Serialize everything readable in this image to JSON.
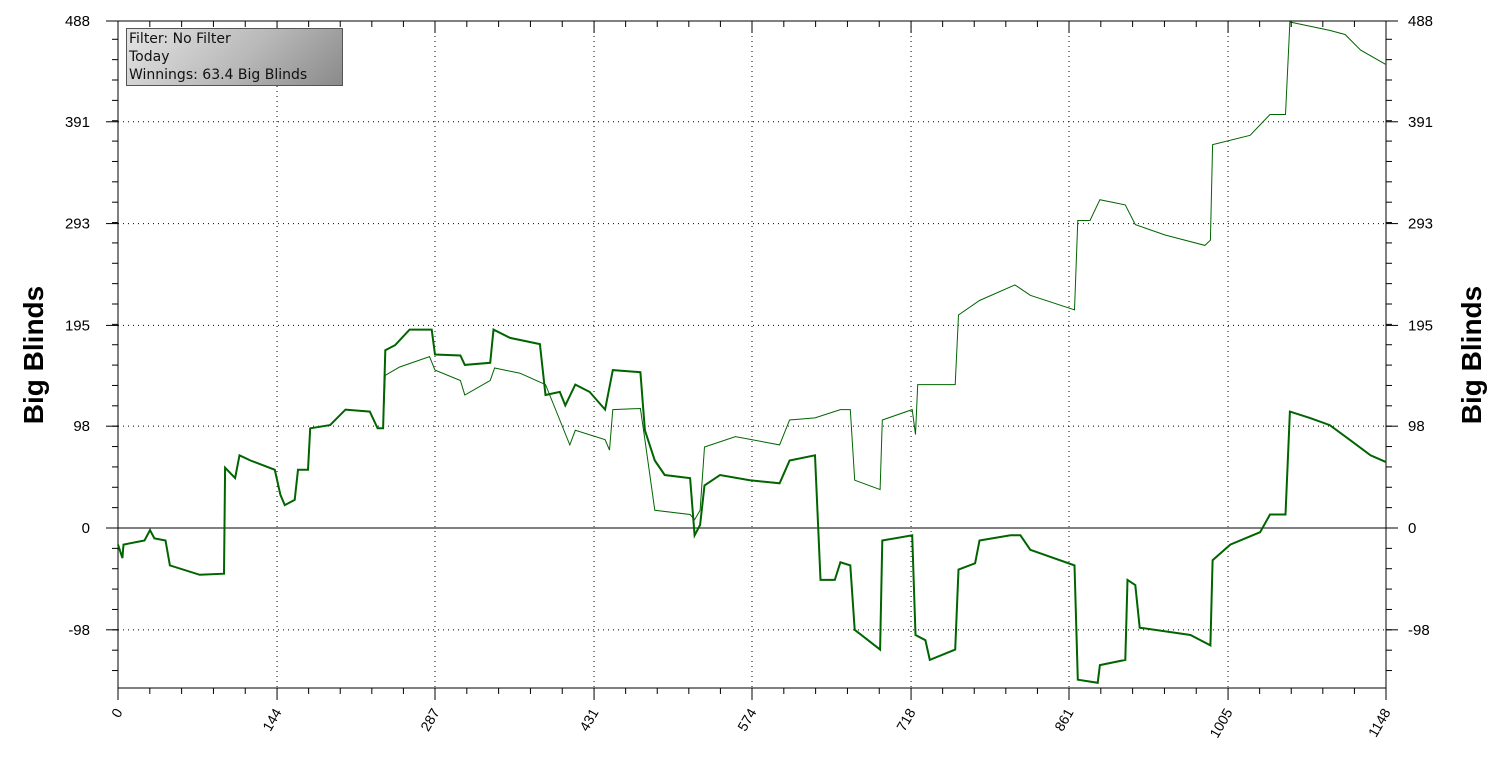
{
  "chart_data": {
    "type": "line",
    "title": "",
    "ylabel": "Big Blinds",
    "ylabel_right": "Big Blinds",
    "xlabel": "",
    "xlim": [
      0,
      1148
    ],
    "ylim": [
      -154,
      488
    ],
    "x_ticks": [
      0,
      144,
      287,
      431,
      574,
      718,
      861,
      1005,
      1148
    ],
    "y_ticks": [
      -98,
      0,
      98,
      195,
      293,
      391,
      488
    ],
    "grid": true,
    "line_color": "#006400",
    "series": [
      {
        "style": "thick",
        "points": [
          [
            0,
            -16
          ],
          [
            4,
            -29
          ],
          [
            5,
            -16
          ],
          [
            24,
            -12
          ],
          [
            29,
            -2
          ],
          [
            33,
            -10
          ],
          [
            43,
            -12
          ],
          [
            47,
            -36
          ],
          [
            74,
            -45
          ],
          [
            96,
            -44
          ],
          [
            97,
            58
          ],
          [
            106,
            48
          ],
          [
            110,
            70
          ],
          [
            120,
            65
          ],
          [
            142,
            56
          ],
          [
            147,
            32
          ],
          [
            151,
            22
          ],
          [
            160,
            27
          ],
          [
            163,
            56
          ],
          [
            172,
            56
          ],
          [
            174,
            96
          ],
          [
            192,
            99
          ],
          [
            206,
            114
          ],
          [
            228,
            112
          ],
          [
            235,
            96
          ],
          [
            240,
            96
          ],
          [
            242,
            171
          ],
          [
            251,
            176
          ],
          [
            264,
            191
          ],
          [
            284,
            191
          ],
          [
            287,
            167
          ],
          [
            310,
            166
          ],
          [
            314,
            157
          ],
          [
            337,
            159
          ],
          [
            340,
            191
          ],
          [
            355,
            183
          ],
          [
            382,
            177
          ],
          [
            387,
            128
          ],
          [
            400,
            131
          ],
          [
            405,
            118
          ],
          [
            414,
            138
          ],
          [
            427,
            131
          ],
          [
            441,
            114
          ],
          [
            448,
            152
          ],
          [
            473,
            150
          ],
          [
            477,
            94
          ],
          [
            486,
            65
          ],
          [
            495,
            51
          ],
          [
            518,
            48
          ],
          [
            522,
            -7
          ],
          [
            527,
            3
          ],
          [
            531,
            41
          ],
          [
            545,
            51
          ],
          [
            572,
            46
          ],
          [
            599,
            43
          ],
          [
            608,
            65
          ],
          [
            631,
            70
          ],
          [
            636,
            -50
          ],
          [
            649,
            -50
          ],
          [
            654,
            -33
          ],
          [
            663,
            -36
          ],
          [
            667,
            -98
          ],
          [
            690,
            -117
          ],
          [
            692,
            -12
          ],
          [
            719,
            -7
          ],
          [
            722,
            -103
          ],
          [
            731,
            -108
          ],
          [
            735,
            -127
          ],
          [
            758,
            -117
          ],
          [
            761,
            -40
          ],
          [
            776,
            -34
          ],
          [
            780,
            -12
          ],
          [
            808,
            -7
          ],
          [
            817,
            -7
          ],
          [
            826,
            -21
          ],
          [
            866,
            -36
          ],
          [
            869,
            -146
          ],
          [
            887,
            -149
          ],
          [
            889,
            -132
          ],
          [
            912,
            -127
          ],
          [
            914,
            -50
          ],
          [
            921,
            -55
          ],
          [
            925,
            -96
          ],
          [
            971,
            -103
          ],
          [
            989,
            -113
          ],
          [
            991,
            -31
          ],
          [
            1007,
            -16
          ],
          [
            1034,
            -4
          ],
          [
            1043,
            13
          ],
          [
            1057,
            13
          ],
          [
            1061,
            112
          ],
          [
            1079,
            106
          ],
          [
            1097,
            99
          ],
          [
            1115,
            85
          ],
          [
            1134,
            70
          ],
          [
            1148,
            63.4
          ]
        ]
      },
      {
        "style": "thin",
        "points": [
          [
            0,
            -16
          ],
          [
            4,
            -29
          ],
          [
            5,
            -16
          ],
          [
            24,
            -12
          ],
          [
            29,
            -2
          ],
          [
            33,
            -10
          ],
          [
            43,
            -12
          ],
          [
            47,
            -36
          ],
          [
            74,
            -45
          ],
          [
            96,
            -44
          ],
          [
            97,
            58
          ],
          [
            106,
            48
          ],
          [
            110,
            70
          ],
          [
            120,
            65
          ],
          [
            142,
            56
          ],
          [
            147,
            32
          ],
          [
            151,
            22
          ],
          [
            160,
            27
          ],
          [
            163,
            56
          ],
          [
            172,
            56
          ],
          [
            174,
            96
          ],
          [
            192,
            99
          ],
          [
            206,
            114
          ],
          [
            228,
            112
          ],
          [
            235,
            96
          ],
          [
            240,
            96
          ],
          [
            242,
            147
          ],
          [
            255,
            155
          ],
          [
            282,
            165
          ],
          [
            287,
            152
          ],
          [
            310,
            142
          ],
          [
            314,
            128
          ],
          [
            337,
            142
          ],
          [
            341,
            154
          ],
          [
            364,
            149
          ],
          [
            387,
            138
          ],
          [
            400,
            104
          ],
          [
            409,
            80
          ],
          [
            414,
            94
          ],
          [
            441,
            85
          ],
          [
            445,
            75
          ],
          [
            448,
            114
          ],
          [
            473,
            115
          ],
          [
            477,
            85
          ],
          [
            486,
            17
          ],
          [
            518,
            13
          ],
          [
            522,
            8
          ],
          [
            527,
            17
          ],
          [
            531,
            78
          ],
          [
            559,
            88
          ],
          [
            599,
            80
          ],
          [
            608,
            104
          ],
          [
            631,
            106
          ],
          [
            654,
            114
          ],
          [
            663,
            114
          ],
          [
            667,
            46
          ],
          [
            690,
            37
          ],
          [
            692,
            104
          ],
          [
            719,
            114
          ],
          [
            722,
            90
          ],
          [
            724,
            138
          ],
          [
            758,
            138
          ],
          [
            761,
            205
          ],
          [
            780,
            219
          ],
          [
            812,
            234
          ],
          [
            826,
            224
          ],
          [
            866,
            210
          ],
          [
            869,
            296
          ],
          [
            880,
            296
          ],
          [
            889,
            316
          ],
          [
            912,
            311
          ],
          [
            921,
            292
          ],
          [
            948,
            282
          ],
          [
            984,
            272
          ],
          [
            989,
            277
          ],
          [
            991,
            369
          ],
          [
            1025,
            378
          ],
          [
            1043,
            398
          ],
          [
            1057,
            398
          ],
          [
            1061,
            487
          ],
          [
            1097,
            479
          ],
          [
            1111,
            475
          ],
          [
            1125,
            460
          ],
          [
            1148,
            446
          ]
        ]
      }
    ]
  },
  "legend": {
    "filter": "Filter: No Filter",
    "period": "Today",
    "winnings": "Winnings: 63.4 Big Blinds"
  }
}
